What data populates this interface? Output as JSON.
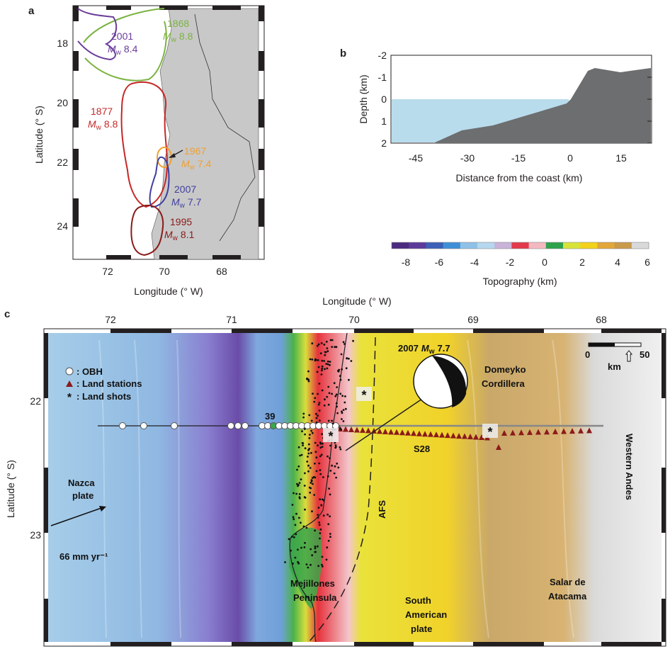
{
  "panel_a": {
    "letter": "a",
    "xlabel": "Longitude (° W)",
    "ylabel": "Latitude (° S)",
    "x_ticks": [
      "72",
      "70",
      "68"
    ],
    "y_ticks": [
      "18",
      "20",
      "22",
      "24"
    ],
    "ruptures": [
      {
        "year": "1868",
        "mw": "8.8",
        "color": "#7cb342"
      },
      {
        "year": "2001",
        "mw": "8.4",
        "color": "#6a3d9a"
      },
      {
        "year": "1877",
        "mw": "8.8",
        "color": "#c62828"
      },
      {
        "year": "1967",
        "mw": "7.4",
        "color": "#f0a030"
      },
      {
        "year": "2007",
        "mw": "7.7",
        "color": "#3f3f9f"
      },
      {
        "year": "1995",
        "mw": "8.1",
        "color": "#8b1a1a"
      }
    ],
    "mw_prefix": "M",
    "mw_sub": "w"
  },
  "panel_b": {
    "letter": "b",
    "xlabel": "Distance from the coast (km)",
    "ylabel": "Depth (km)",
    "x_ticks": [
      "-45",
      "-30",
      "-15",
      "0",
      "15"
    ],
    "y_ticks": [
      "-2",
      "-1",
      "0",
      "1",
      "2"
    ],
    "colors": {
      "sea": "#b9dcec",
      "land": "#6d6e70"
    }
  },
  "colorbar": {
    "label": "Topography (km)",
    "ticks": [
      "-8",
      "-6",
      "-4",
      "-2",
      "0",
      "2",
      "4",
      "6"
    ],
    "colors": [
      "#4b2a7f",
      "#5b3a9a",
      "#3d5fb8",
      "#3f8fd6",
      "#8fc1e8",
      "#b6d7ee",
      "#c9b3d8",
      "#e23a4a",
      "#f4b9c0",
      "#2ea24a",
      "#d8e33a",
      "#f2d21a",
      "#e2a63a",
      "#c89a4a",
      "#d9d9d9"
    ]
  },
  "panel_c": {
    "letter": "c",
    "xlabel": "Longitude (° W)",
    "ylabel": "Latitude (° S)",
    "x_ticks": [
      "72",
      "71",
      "70",
      "69",
      "68"
    ],
    "y_ticks": [
      "22",
      "23"
    ],
    "legend": {
      "obh": ": OBH",
      "land_stations": ": Land stations",
      "land_shots": ": Land shots"
    },
    "event_label": "2007",
    "event_mw": "7.7",
    "station_39": "39",
    "station_s28": "S28",
    "scale": {
      "zero": "0",
      "fifty": "50",
      "unit": "km"
    },
    "plate_rate": "66 mm yr⁻¹",
    "places": {
      "nazca_1": "Nazca",
      "nazca_2": "plate",
      "domeyko_1": "Domeyko",
      "domeyko_2": "Cordillera",
      "western_andes": "Western Andes",
      "afs": "AFS",
      "mejillones_1": "Mejillones",
      "mejillones_2": "Peninsula",
      "sam_1": "South",
      "sam_2": "American",
      "sam_3": "plate",
      "salar_1": "Salar de",
      "salar_2": "Atacama"
    },
    "colors": {
      "station": "#8b1a1a",
      "obh": "#ffffff",
      "line": "#888888"
    }
  }
}
